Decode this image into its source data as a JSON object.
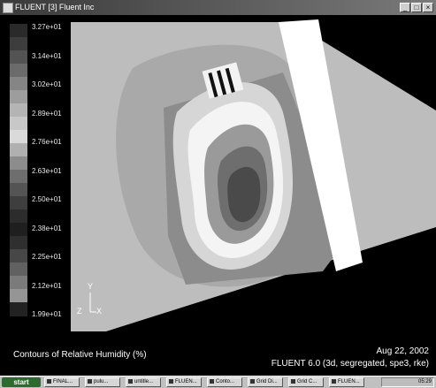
{
  "window": {
    "title": "FLUENT [3] Fluent Inc",
    "min_glyph": "_",
    "max_glyph": "□",
    "close_glyph": "×"
  },
  "colorbar": {
    "labels": [
      "3.27e+01",
      "3.14e+01",
      "3.02e+01",
      "2.89e+01",
      "2.76e+01",
      "2.63e+01",
      "2.50e+01",
      "2.38e+01",
      "2.25e+01",
      "2.12e+01",
      "1.99e+01"
    ],
    "swatches": [
      "#2a2a2a",
      "#3d3d3d",
      "#535353",
      "#6b6b6b",
      "#858585",
      "#9d9d9d",
      "#b4b4b4",
      "#c8c8c8",
      "#dadada",
      "#b0b0b0",
      "#8c8c8c",
      "#6e6e6e",
      "#545454",
      "#3e3e3e",
      "#2c2c2c",
      "#1f1f1f",
      "#2f2f2f",
      "#474747",
      "#616161",
      "#7b7b7b",
      "#959595",
      "#222222"
    ]
  },
  "axes": {
    "y": "Y",
    "z": "Z",
    "x": "X"
  },
  "caption": {
    "title": "Contours of Relative Humidity (%)",
    "date": "Aug 22, 2002",
    "version": "FLUENT 6.0 (3d, segregated, spe3, rke)"
  },
  "taskbar": {
    "start": "start",
    "tasks": [
      "FINAL...",
      "pulu...",
      "untitle...",
      "FLUEN...",
      "Conto...",
      "Grid Di...",
      "Grid C...",
      "FLUEN..."
    ],
    "clock": "05:29"
  },
  "colors": {
    "background": "#000000",
    "titlebar": "#5a5a5a",
    "taskbar": "#c0c0c0"
  }
}
